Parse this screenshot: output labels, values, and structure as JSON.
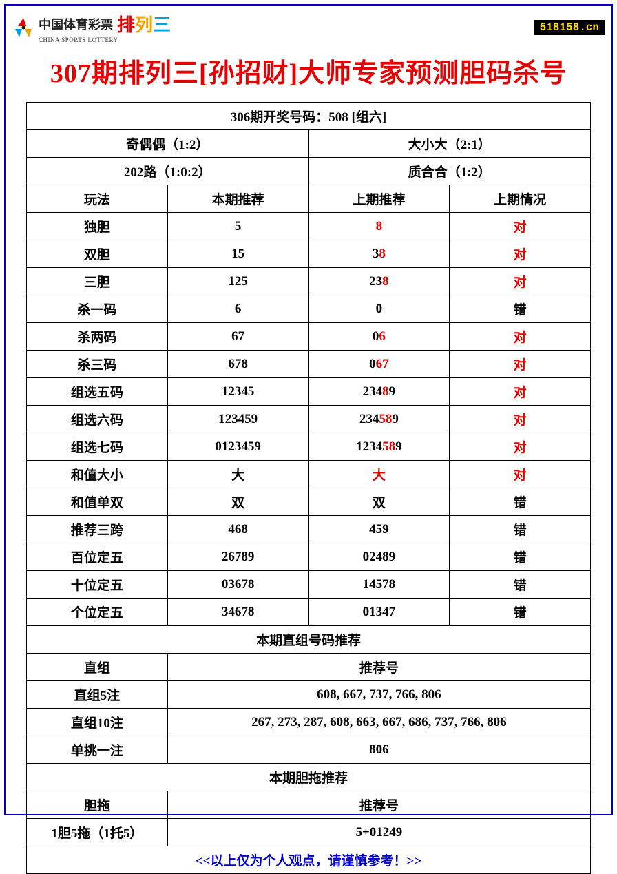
{
  "header": {
    "logo_cn": "中国体育彩票",
    "logo_en": "CHINA SPORTS LOTTERY",
    "plsan_chars": [
      "排",
      "列",
      "三"
    ],
    "site_badge": "518158.cn"
  },
  "title": "307期排列三[孙招财]大师专家预测胆码杀号",
  "top_info": {
    "prev_draw": "306期开奖号码：508 [组六]",
    "pairs": [
      [
        "奇偶偶（1:2）",
        "大小大（2:1）"
      ],
      [
        "202路（1:0:2）",
        "质合合（1:2）"
      ]
    ]
  },
  "columns": [
    "玩法",
    "本期推荐",
    "上期推荐",
    "上期情况"
  ],
  "rows": [
    {
      "name": "独胆",
      "current": "5",
      "prev": [
        {
          "t": "8",
          "r": true
        }
      ],
      "result": "对",
      "ok": true
    },
    {
      "name": "双胆",
      "current": "15",
      "prev": [
        {
          "t": "3",
          "r": false
        },
        {
          "t": "8",
          "r": true
        }
      ],
      "result": "对",
      "ok": true
    },
    {
      "name": "三胆",
      "current": "125",
      "prev": [
        {
          "t": "23",
          "r": false
        },
        {
          "t": "8",
          "r": true
        }
      ],
      "result": "对",
      "ok": true
    },
    {
      "name": "杀一码",
      "current": "6",
      "prev": [
        {
          "t": "0",
          "r": false
        }
      ],
      "result": "错",
      "ok": false
    },
    {
      "name": "杀两码",
      "current": "67",
      "prev": [
        {
          "t": "0",
          "r": false
        },
        {
          "t": "6",
          "r": true
        }
      ],
      "result": "对",
      "ok": true
    },
    {
      "name": "杀三码",
      "current": "678",
      "prev": [
        {
          "t": "0",
          "r": false
        },
        {
          "t": "67",
          "r": true
        }
      ],
      "result": "对",
      "ok": true
    },
    {
      "name": "组选五码",
      "current": "12345",
      "prev": [
        {
          "t": "234",
          "r": false
        },
        {
          "t": "8",
          "r": true
        },
        {
          "t": "9",
          "r": false
        }
      ],
      "result": "对",
      "ok": true
    },
    {
      "name": "组选六码",
      "current": "123459",
      "prev": [
        {
          "t": "234",
          "r": false
        },
        {
          "t": "58",
          "r": true
        },
        {
          "t": "9",
          "r": false
        }
      ],
      "result": "对",
      "ok": true
    },
    {
      "name": "组选七码",
      "current": "0123459",
      "prev": [
        {
          "t": "1234",
          "r": false
        },
        {
          "t": "58",
          "r": true
        },
        {
          "t": "9",
          "r": false
        }
      ],
      "result": "对",
      "ok": true
    },
    {
      "name": "和值大小",
      "current": "大",
      "prev": [
        {
          "t": "大",
          "r": true
        }
      ],
      "result": "对",
      "ok": true
    },
    {
      "name": "和值单双",
      "current": "双",
      "prev": [
        {
          "t": "双",
          "r": false
        }
      ],
      "result": "错",
      "ok": false
    },
    {
      "name": "推荐三跨",
      "current": "468",
      "prev": [
        {
          "t": "459",
          "r": false
        }
      ],
      "result": "错",
      "ok": false
    },
    {
      "name": "百位定五",
      "current": "26789",
      "prev": [
        {
          "t": "02489",
          "r": false
        }
      ],
      "result": "错",
      "ok": false
    },
    {
      "name": "十位定五",
      "current": "03678",
      "prev": [
        {
          "t": "14578",
          "r": false
        }
      ],
      "result": "错",
      "ok": false
    },
    {
      "name": "个位定五",
      "current": "34678",
      "prev": [
        {
          "t": "01347",
          "r": false
        }
      ],
      "result": "错",
      "ok": false
    }
  ],
  "zhizu": {
    "section_title": "本期直组号码推荐",
    "header_left": "直组",
    "header_right": "推荐号",
    "rows": [
      {
        "label": "直组5注",
        "value": "608, 667, 737, 766, 806"
      },
      {
        "label": "直组10注",
        "value": "267, 273, 287, 608, 663, 667, 686, 737, 766, 806"
      },
      {
        "label": "单挑一注",
        "value": "806"
      }
    ]
  },
  "dantuo": {
    "section_title": "本期胆拖推荐",
    "header_left": "胆拖",
    "header_right": "推荐号",
    "rows": [
      {
        "label": "1胆5拖（1托5）",
        "value": "5+01249"
      }
    ]
  },
  "footer": "<<以上仅为个人观点，请谨慎参考！>>",
  "colors": {
    "border": "#0000cc",
    "title": "#e60000",
    "highlight": "#e60000",
    "text": "#000000",
    "badge_bg": "#000000",
    "badge_text": "#ffdd00"
  }
}
